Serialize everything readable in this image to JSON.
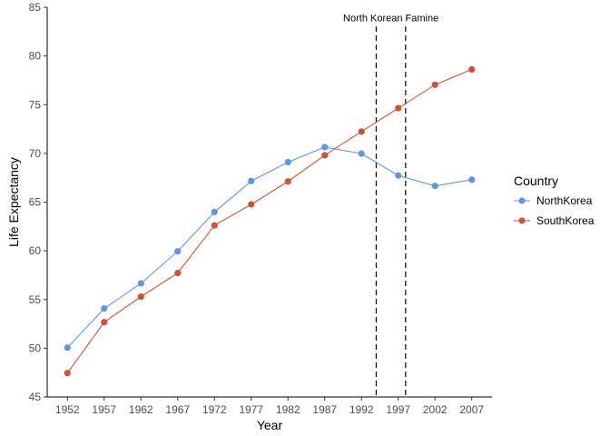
{
  "chart_data": {
    "type": "line",
    "title": "",
    "xlabel": "Year",
    "ylabel": "Life Expectancy",
    "x": [
      1952,
      1957,
      1962,
      1967,
      1972,
      1977,
      1982,
      1987,
      1992,
      1997,
      2002,
      2007
    ],
    "xlim": [
      1949.25,
      2009.75
    ],
    "ylim": [
      45,
      85
    ],
    "yticks": [
      45,
      50,
      55,
      60,
      65,
      70,
      75,
      80,
      85
    ],
    "grid": false,
    "legend": {
      "title": "Country",
      "placement": "right"
    },
    "series": [
      {
        "name": "NorthKorea",
        "color": "#6495d8",
        "values": [
          50.056,
          54.081,
          56.656,
          59.942,
          63.983,
          67.159,
          69.1,
          70.647,
          69.978,
          67.727,
          66.662,
          67.297
        ]
      },
      {
        "name": "SouthKorea",
        "color": "#c8543e",
        "values": [
          47.453,
          52.681,
          55.292,
          57.716,
          62.612,
          64.766,
          67.123,
          69.81,
          72.244,
          74.647,
          77.045,
          78.623
        ]
      }
    ],
    "vlines": [
      1994,
      1998
    ],
    "annotation": {
      "text": "North Korean Famine",
      "x": 1996,
      "y": 84
    }
  }
}
